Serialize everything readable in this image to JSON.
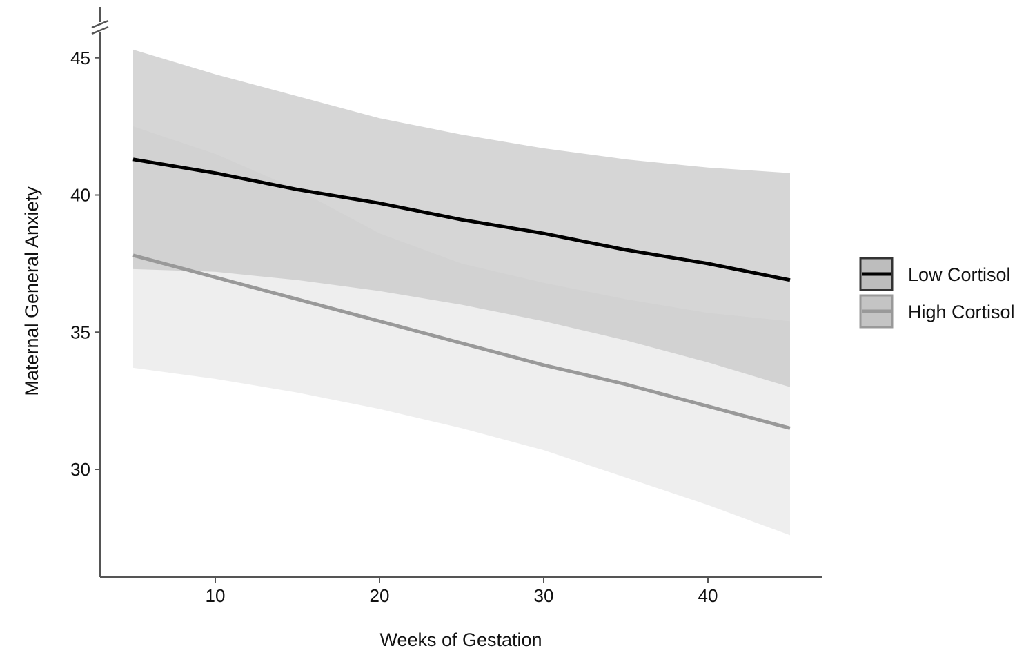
{
  "chart_data": {
    "type": "line",
    "title": "",
    "xlabel": "Weeks of Gestation",
    "ylabel": "Maternal General Anxiety",
    "xlim": [
      3,
      47
    ],
    "ylim": [
      26,
      46
    ],
    "x_ticks": [
      10,
      20,
      30,
      40
    ],
    "y_ticks": [
      30,
      35,
      40,
      45
    ],
    "axis_break": "y-top",
    "grid": false,
    "legend_position": "right",
    "series": [
      {
        "name": "Low Cortisol",
        "color": "#000000",
        "band_color": "#c8c8c8",
        "x": [
          5,
          10,
          15,
          20,
          25,
          30,
          35,
          40,
          45
        ],
        "y": [
          41.3,
          40.8,
          40.2,
          39.7,
          39.1,
          38.6,
          38.0,
          37.5,
          36.9
        ],
        "lower": [
          37.3,
          37.2,
          36.9,
          36.5,
          36.0,
          35.4,
          34.7,
          33.9,
          33.0
        ],
        "upper": [
          45.3,
          44.4,
          43.6,
          42.8,
          42.2,
          41.7,
          41.3,
          41.0,
          40.8
        ]
      },
      {
        "name": "High Cortisol",
        "color": "#999999",
        "band_color": "#e8e8e8",
        "x": [
          5,
          10,
          15,
          20,
          25,
          30,
          35,
          40,
          45
        ],
        "y": [
          37.8,
          37.0,
          36.2,
          35.4,
          34.6,
          33.8,
          33.1,
          32.3,
          31.5
        ],
        "lower": [
          33.7,
          33.3,
          32.8,
          32.2,
          31.5,
          30.7,
          29.7,
          28.7,
          27.6
        ],
        "upper": [
          42.5,
          41.5,
          40.2,
          38.6,
          37.5,
          36.8,
          36.2,
          35.7,
          35.4
        ]
      }
    ]
  }
}
